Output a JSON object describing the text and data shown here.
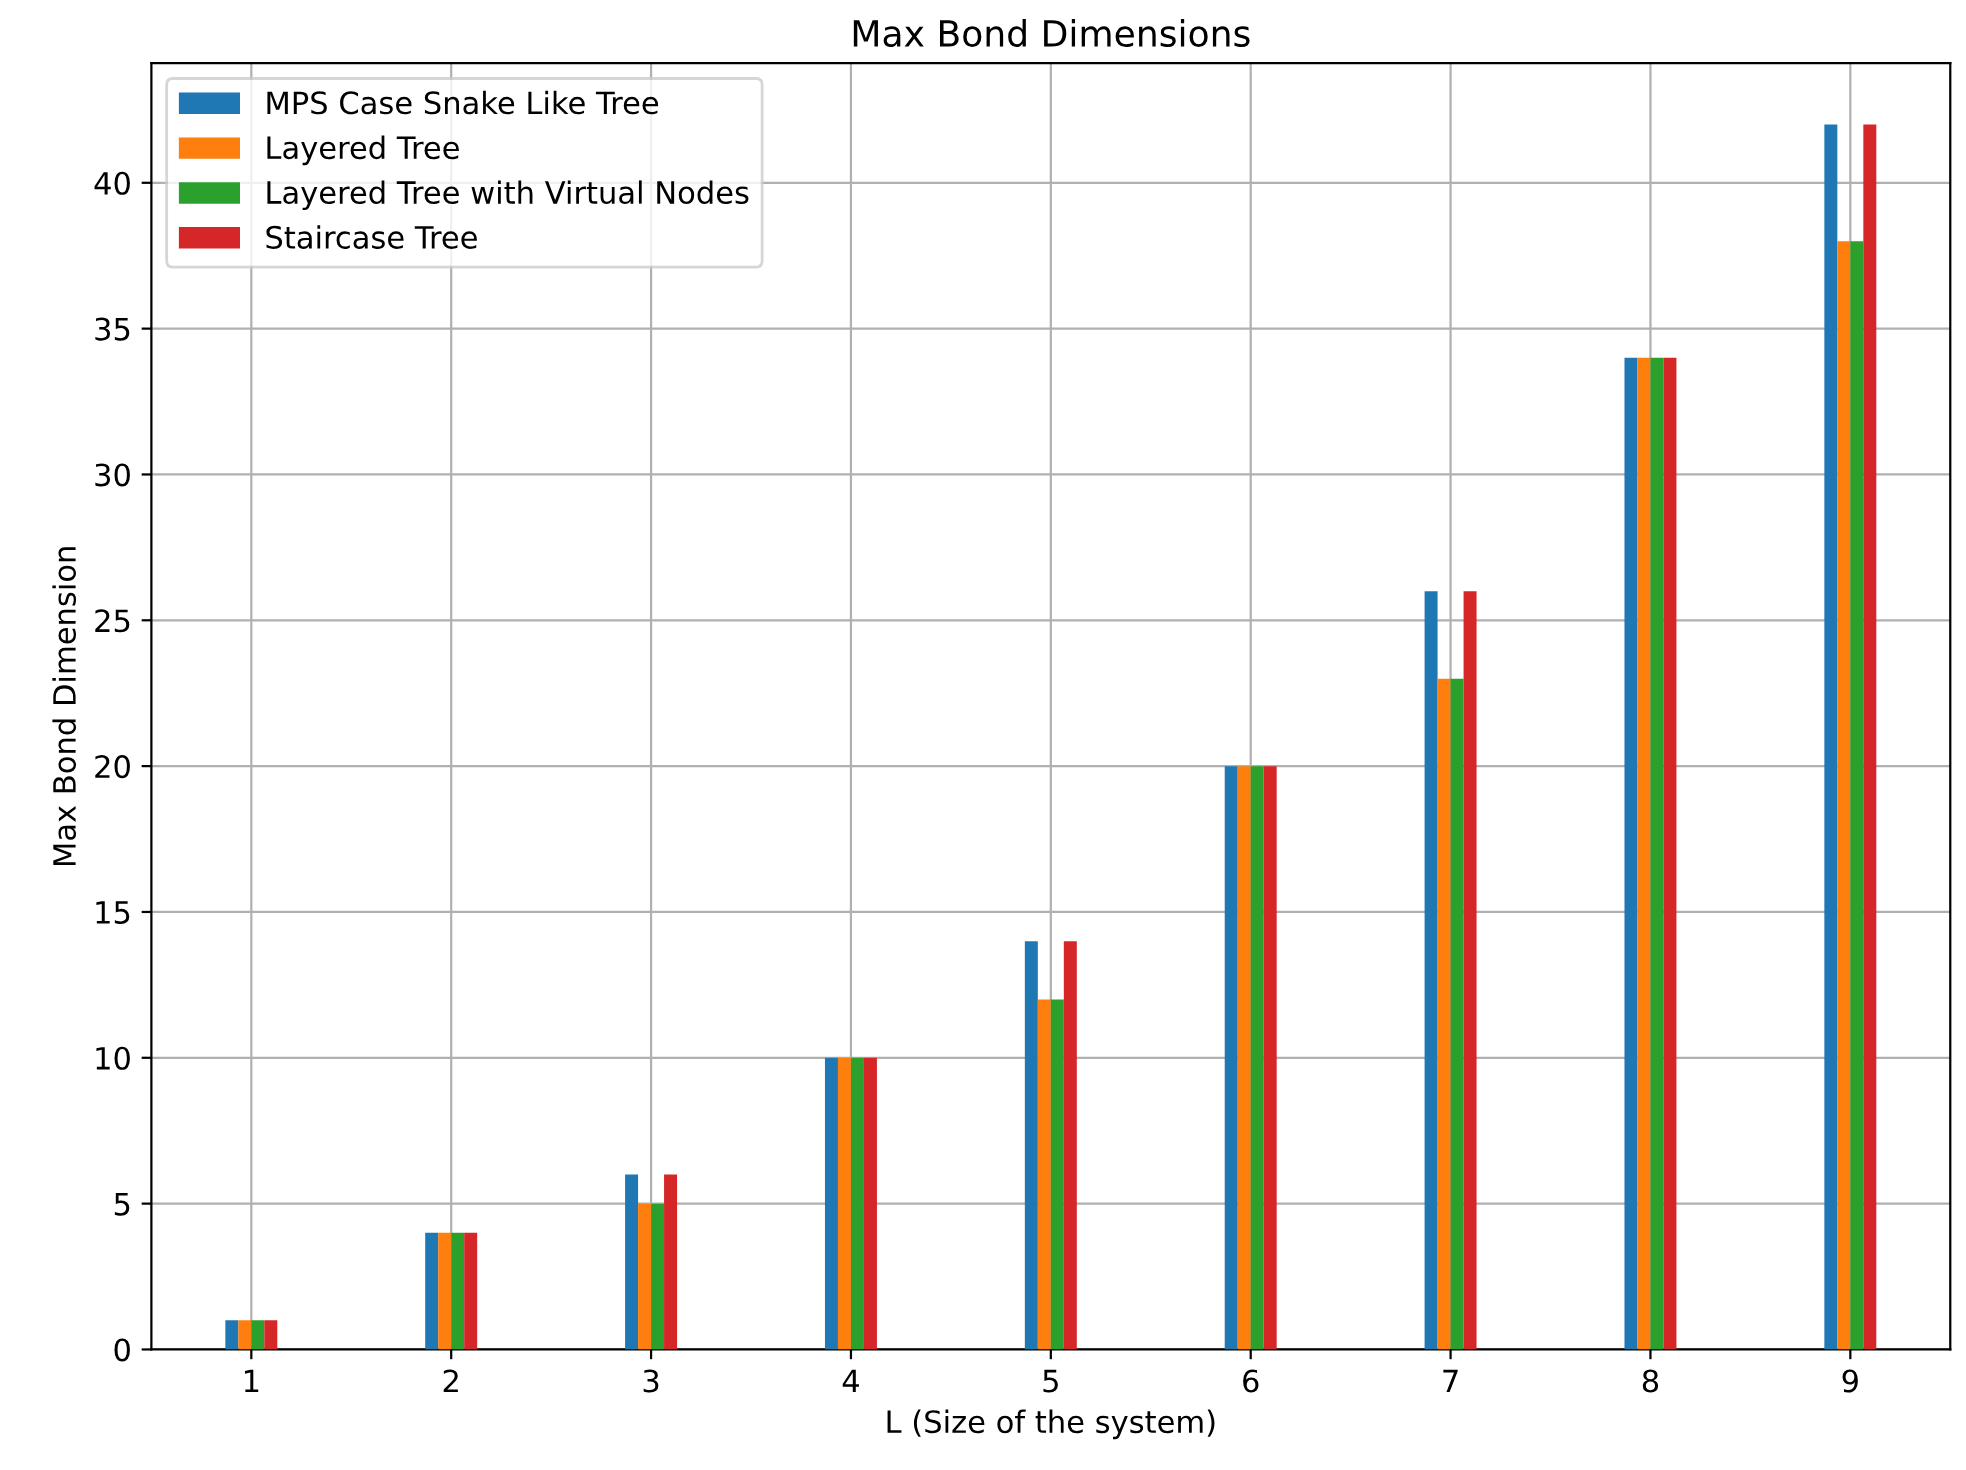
{
  "chart_data": {
    "type": "bar",
    "title": "Max Bond Dimensions",
    "xlabel": "L (Size of the system)",
    "ylabel": "Max Bond Dimension",
    "categories": [
      "1",
      "2",
      "3",
      "4",
      "5",
      "6",
      "7",
      "8",
      "9"
    ],
    "series": [
      {
        "name": "MPS Case Snake Like Tree",
        "color": "#1f77b4",
        "values": [
          1,
          4,
          6,
          10,
          14,
          20,
          26,
          34,
          42
        ]
      },
      {
        "name": "Layered Tree",
        "color": "#ff7f0e",
        "values": [
          1,
          4,
          5,
          10,
          12,
          20,
          23,
          34,
          38
        ]
      },
      {
        "name": "Layered Tree with Virtual Nodes",
        "color": "#2ca02c",
        "values": [
          1,
          4,
          5,
          10,
          12,
          20,
          23,
          34,
          38
        ]
      },
      {
        "name": "Staircase Tree",
        "color": "#d62728",
        "values": [
          1,
          4,
          6,
          10,
          14,
          20,
          26,
          34,
          42
        ]
      }
    ],
    "ylim": [
      0,
      44.1
    ],
    "yticks": [
      0,
      5,
      10,
      15,
      20,
      25,
      30,
      35,
      40
    ],
    "grid": true,
    "legend": "top left"
  }
}
